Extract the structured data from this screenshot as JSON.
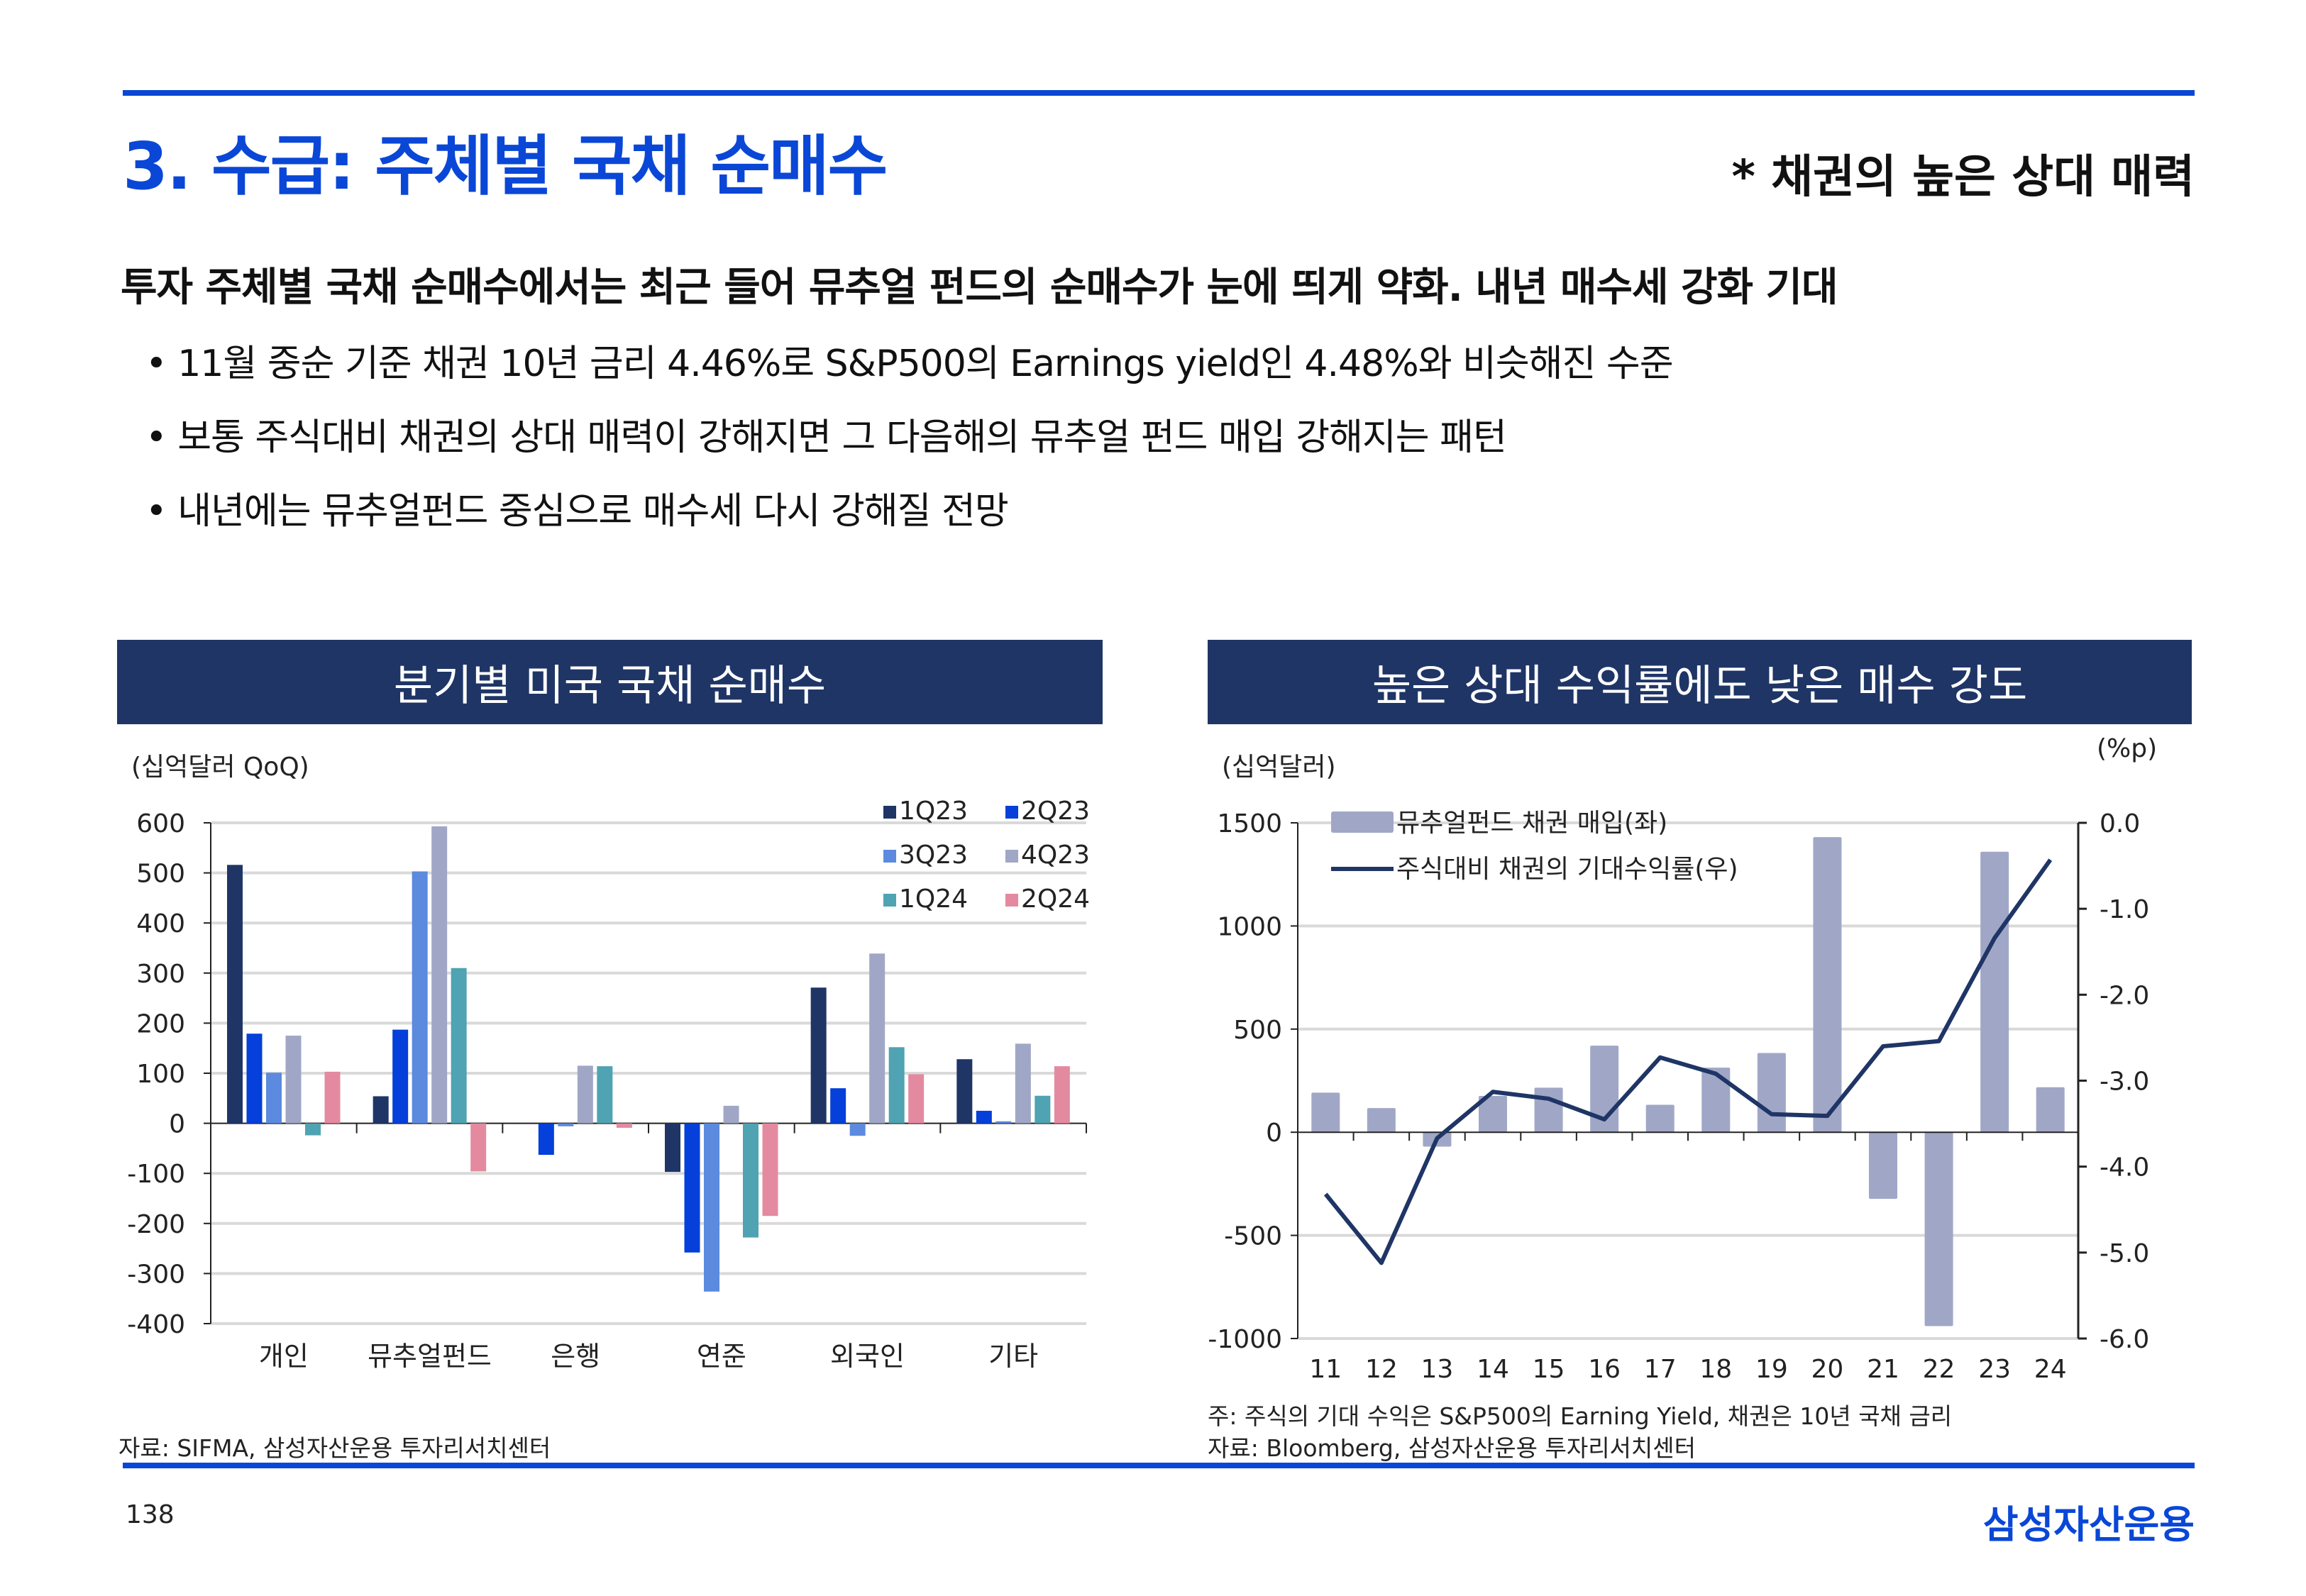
{
  "header": {
    "title": "3. 수급: 주체별 국채 순매수",
    "tagline": "* 채권의 높은 상대 매력"
  },
  "headline": "투자 주체별 국채 순매수에서는 최근 들어 뮤추얼 펀드의 순매수가 눈에 띄게 약화. 내년 매수세 강화 기대",
  "bullets": [
    "• 11월 중순 기준 채권 10년 금리 4.46%로 S&P500의 Earnings yield인 4.48%와 비슷해진 수준",
    "• 보통 주식대비 채권의 상대 매력이 강해지면 그 다음해의 뮤추얼 펀드 매입 강해지는 패턴",
    "• 내년에는 뮤추얼펀드 중심으로 매수세 다시 강해질 전망"
  ],
  "left_panel": {
    "title": "분기별 미국 국채 순매수",
    "unit": "(십억달러 QoQ)",
    "source": "자료: SIFMA, 삼성자산운용 투자리서치센터"
  },
  "right_panel": {
    "title": "높은 상대 수익률에도 낮은 매수 강도",
    "unit_left": "(십억달러)",
    "unit_right": "(%p)",
    "note": "주: 주식의 기대 수익은 S&P500의 Earning Yield, 채권은 10년 국채 금리",
    "source": "자료: Bloomberg, 삼성자산운용 투자리서치센터"
  },
  "footer": {
    "page": "138",
    "logo": "삼성자산운용"
  },
  "chart_data": [
    {
      "type": "bar",
      "title": "분기별 미국 국채 순매수",
      "ylabel": "(십억달러 QoQ)",
      "ylim": [
        -400,
        600
      ],
      "yticks": [
        600,
        500,
        400,
        300,
        200,
        100,
        0,
        -100,
        -200,
        -300,
        -400
      ],
      "categories": [
        "개인",
        "뮤추얼펀드",
        "은행",
        "연준",
        "외국인",
        "기타"
      ],
      "legend_position": "top-right",
      "series": [
        {
          "name": "1Q23",
          "color": "#1f3566",
          "values": [
            516,
            54,
            0,
            -97,
            271,
            128
          ]
        },
        {
          "name": "2Q23",
          "color": "#0440d9",
          "values": [
            179,
            187,
            -63,
            -258,
            70,
            25
          ]
        },
        {
          "name": "3Q23",
          "color": "#5b8ade",
          "values": [
            101,
            503,
            -6,
            -336,
            -25,
            4
          ]
        },
        {
          "name": "4Q23",
          "color": "#a0a7c6",
          "values": [
            175,
            593,
            115,
            35,
            339,
            159
          ]
        },
        {
          "name": "1Q24",
          "color": "#4fa3b3",
          "values": [
            -24,
            310,
            114,
            -228,
            152,
            55
          ]
        },
        {
          "name": "2Q24",
          "color": "#e48aa0",
          "values": [
            103,
            -96,
            -9,
            -185,
            98,
            114
          ]
        }
      ]
    },
    {
      "type": "bar+line",
      "title": "높은 상대 수익률에도 낮은 매수 강도",
      "x": [
        "11",
        "12",
        "13",
        "14",
        "15",
        "16",
        "17",
        "18",
        "19",
        "20",
        "21",
        "22",
        "23",
        "24"
      ],
      "ylim_left": [
        -1000,
        1500
      ],
      "yticks_left": [
        1500,
        1000,
        500,
        0,
        -500,
        -1000
      ],
      "ylim_right": [
        -6.0,
        0.0
      ],
      "yticks_right": [
        "0.0",
        "-1.0",
        "-2.0",
        "-3.0",
        "-4.0",
        "-5.0",
        "-6.0"
      ],
      "legend_position": "top-left",
      "series": [
        {
          "name": "뮤추얼펀드 채권 매입(좌)",
          "type": "bar",
          "axis": "left",
          "color": "#a0a7c6",
          "values": [
            192,
            117,
            -70,
            176,
            216,
            420,
            133,
            313,
            384,
            1431,
            -323,
            -940,
            1360,
            218
          ]
        },
        {
          "name": "주식대비 채권의 기대수익률(우)",
          "type": "line",
          "axis": "right",
          "color": "#1f3566",
          "values": [
            -4.32,
            -5.12,
            -3.67,
            -3.13,
            -3.21,
            -3.45,
            -2.73,
            -2.92,
            -3.39,
            -3.41,
            -2.6,
            -2.54,
            -1.34,
            -0.43
          ]
        }
      ]
    }
  ]
}
